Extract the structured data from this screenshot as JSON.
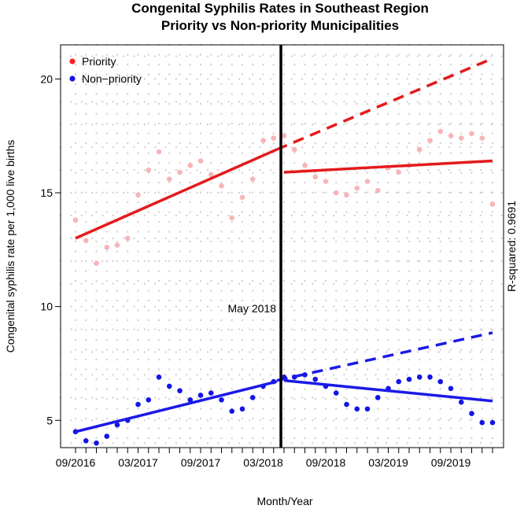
{
  "chart_data": {
    "type": "scatter",
    "title": "Congenital Syphilis Rates in Southeast Region",
    "subtitle": "Priority vs Non-priority Municipalities",
    "xlabel": "Month/Year",
    "ylabel": "Congenital syphilis rate per 1,000 live births",
    "right_label": "R-squared: 0.9691",
    "intervention_label": "May 2018",
    "intervention_index": 20,
    "n_points": 41,
    "ylim": [
      3.8,
      21.5
    ],
    "y_ticks": [
      5,
      10,
      15,
      20
    ],
    "x_tick_labels": [
      {
        "index": 0,
        "label": "09/2016"
      },
      {
        "index": 6,
        "label": "03/2017"
      },
      {
        "index": 12,
        "label": "09/2017"
      },
      {
        "index": 18,
        "label": "03/2018"
      },
      {
        "index": 24,
        "label": "09/2018"
      },
      {
        "index": 30,
        "label": "03/2019"
      },
      {
        "index": 36,
        "label": "09/2019"
      }
    ],
    "legend_position": "top-left",
    "series": [
      {
        "name": "Priority",
        "legend_label": "Priority",
        "point_color": "#f7b5b8",
        "line_color": "#e41a1c",
        "legend_color": "#ff2020",
        "points": [
          13.8,
          12.9,
          11.9,
          12.6,
          12.7,
          13.0,
          14.9,
          16.0,
          16.8,
          15.6,
          15.9,
          16.2,
          16.4,
          15.8,
          15.3,
          13.9,
          14.8,
          15.6,
          17.3,
          17.4,
          17.5,
          16.9,
          16.2,
          15.7,
          15.5,
          15.0,
          14.9,
          15.2,
          15.5,
          15.1,
          16.1,
          15.9,
          16.2,
          16.9,
          17.3,
          17.7,
          17.5,
          17.4,
          17.6,
          17.4,
          14.5
        ],
        "pre_fit": [
          13.0,
          16.9
        ],
        "post_fit": [
          15.9,
          16.4
        ],
        "counterfactual": [
          16.9,
          20.9
        ]
      },
      {
        "name": "Non-priority",
        "legend_label": "Non−priority",
        "point_color": "#1414e6",
        "line_color": "#1a1ae6",
        "legend_color": "#1414e6",
        "points": [
          4.5,
          4.1,
          4.0,
          4.3,
          4.8,
          5.0,
          5.7,
          5.9,
          6.9,
          6.5,
          6.3,
          5.9,
          6.1,
          6.2,
          5.9,
          5.4,
          5.5,
          6.0,
          6.5,
          6.7,
          6.9,
          6.9,
          7.0,
          6.8,
          6.5,
          6.2,
          5.7,
          5.5,
          5.5,
          6.0,
          6.4,
          6.7,
          6.8,
          6.9,
          6.9,
          6.7,
          6.4,
          5.8,
          5.3,
          4.9,
          4.9
        ],
        "pre_fit": [
          4.5,
          6.7
        ],
        "post_fit": [
          6.75,
          5.85
        ],
        "counterfactual": [
          6.75,
          8.85
        ]
      }
    ],
    "grid": true
  }
}
